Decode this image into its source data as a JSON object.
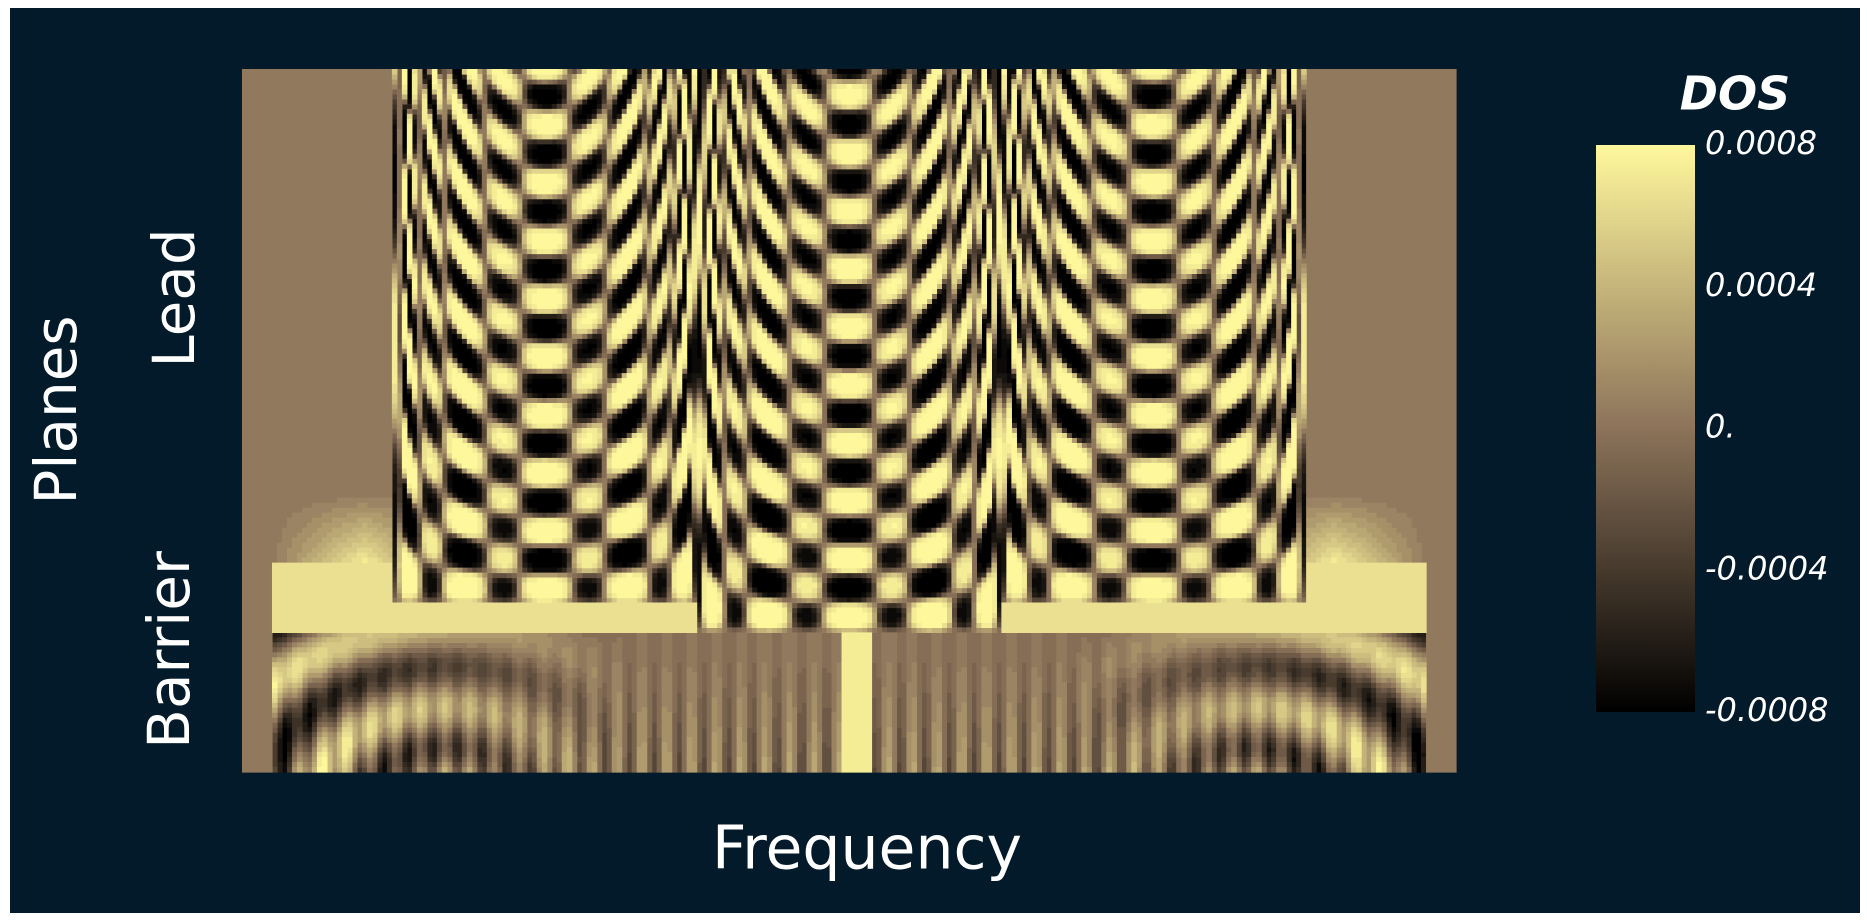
{
  "chart_data": {
    "type": "heatmap",
    "xlabel": "Frequency",
    "ylabel": "Planes",
    "y_region_labels": [
      "Lead",
      "Barrier"
    ],
    "colorbar": {
      "title": "DOS",
      "clim": [
        -0.0008,
        0.0008
      ],
      "ticks": [
        0.0008,
        0.0004,
        {
          "value": 0,
          "label": "0."
        },
        -0.0004,
        -0.0008
      ],
      "colors": [
        "#000000",
        "#8c735a",
        "#fff79c"
      ]
    }
  }
}
